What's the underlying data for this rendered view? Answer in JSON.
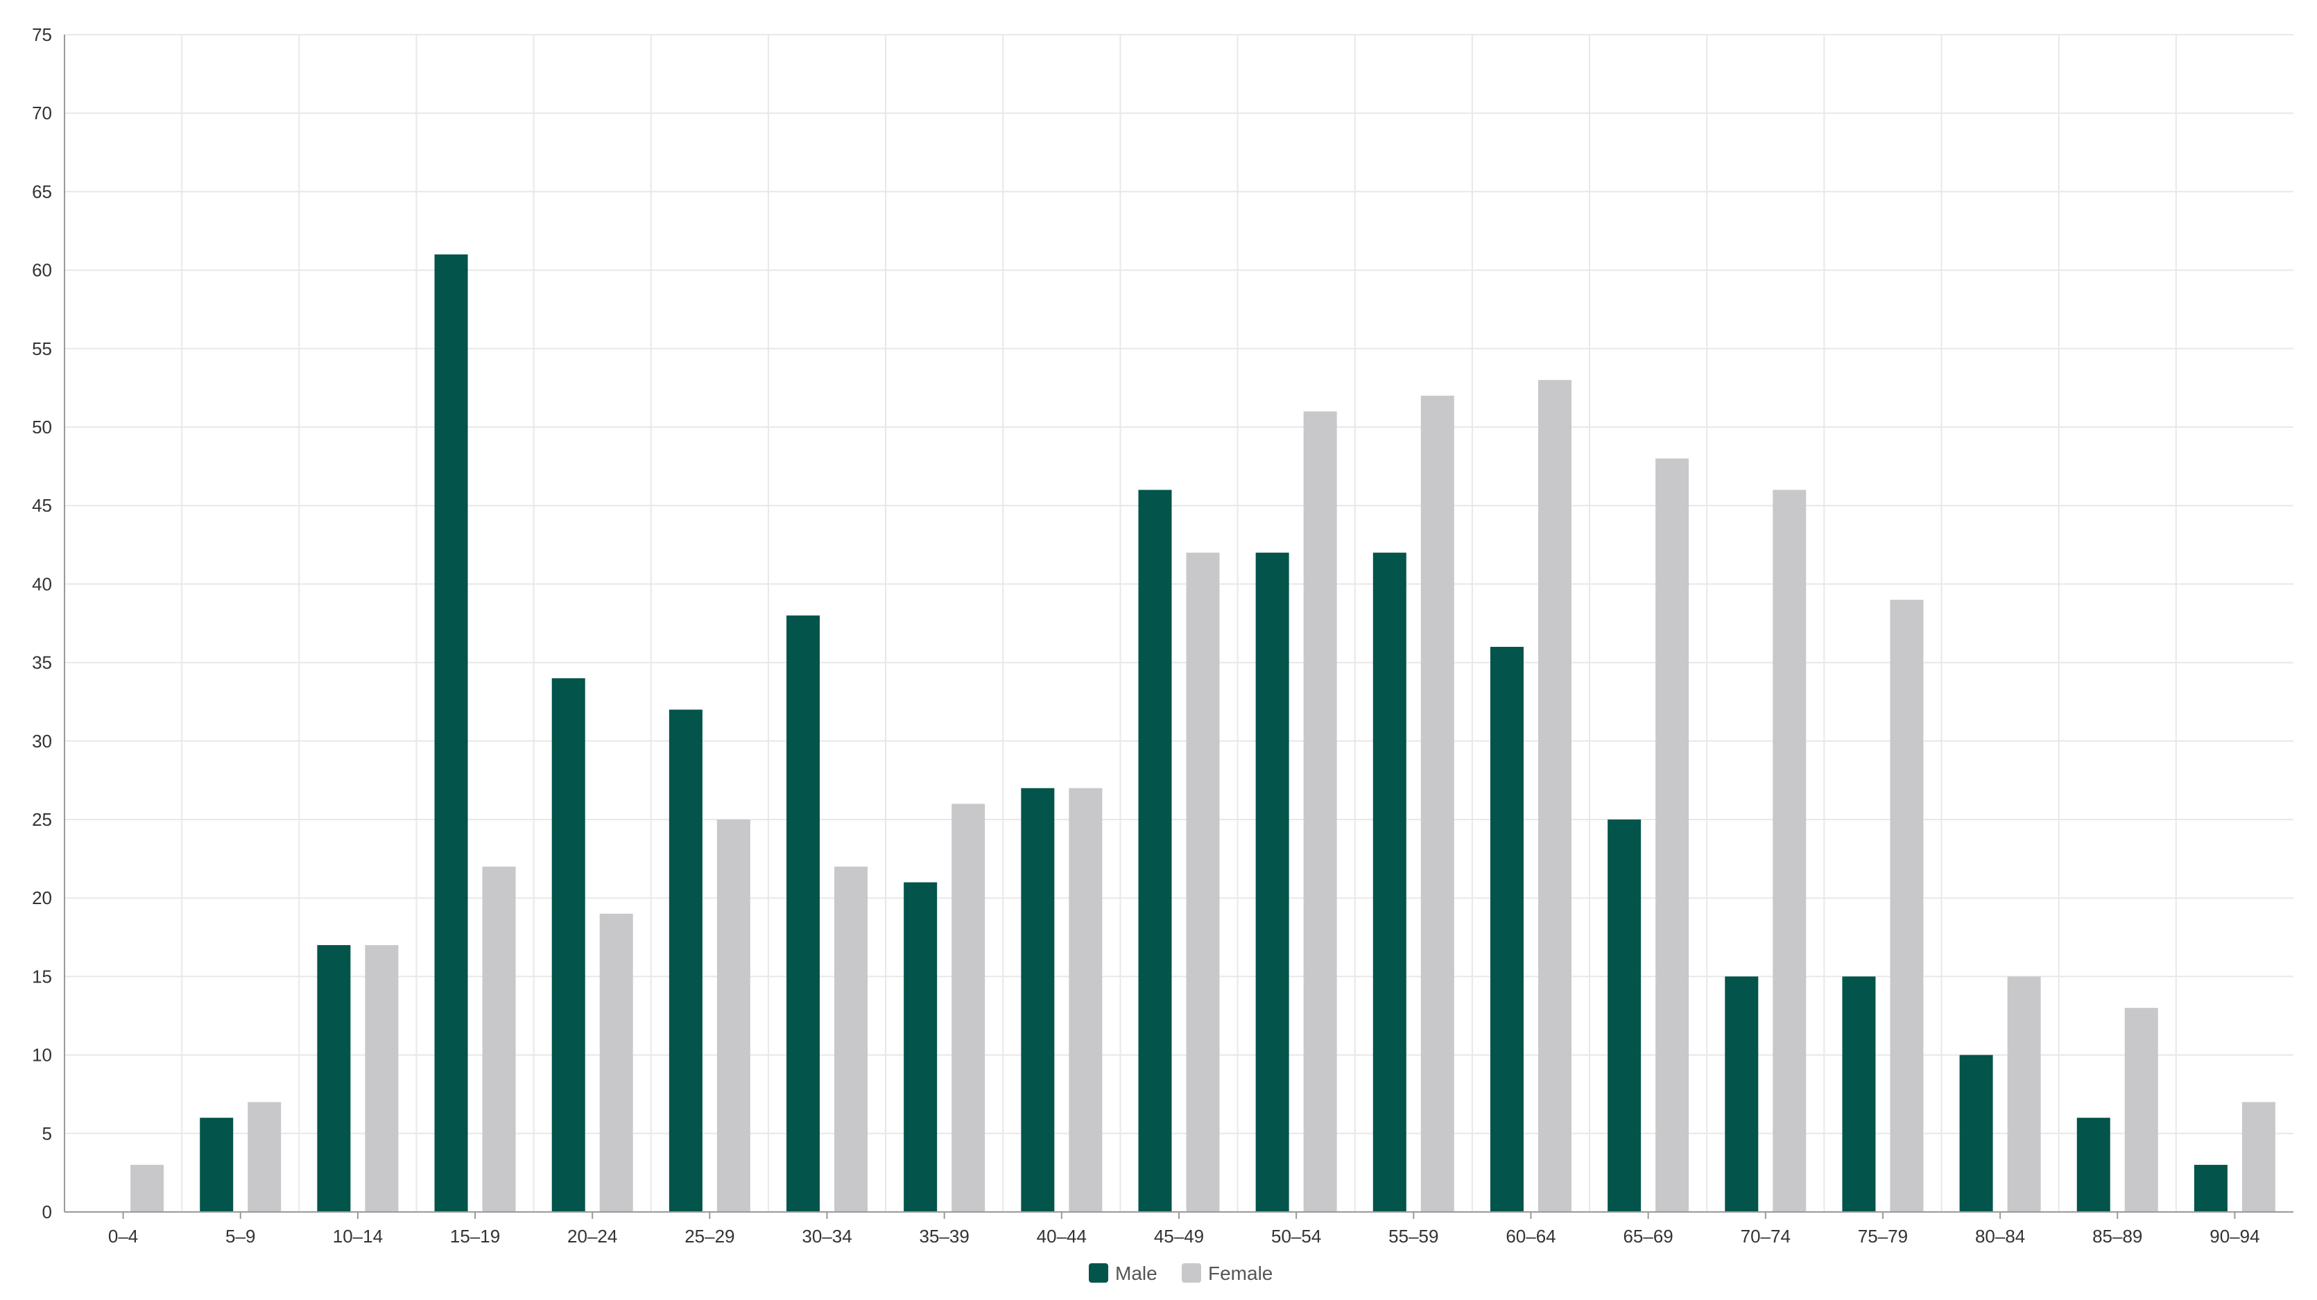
{
  "chart_data": {
    "type": "bar",
    "categories": [
      "0–4",
      "5–9",
      "10–14",
      "15–19",
      "20–24",
      "25–29",
      "30–34",
      "35–39",
      "40–44",
      "45–49",
      "50–54",
      "55–59",
      "60–64",
      "65–69",
      "70–74",
      "75–79",
      "80–84",
      "85–89",
      "90–94"
    ],
    "series": [
      {
        "name": "Male",
        "color": "#03544a",
        "values": [
          0,
          6,
          17,
          61,
          34,
          32,
          38,
          21,
          27,
          46,
          42,
          42,
          36,
          25,
          15,
          15,
          10,
          6,
          3
        ]
      },
      {
        "name": "Female",
        "color": "#c8c8ca",
        "values": [
          3,
          7,
          17,
          22,
          19,
          25,
          22,
          26,
          27,
          42,
          51,
          52,
          53,
          48,
          46,
          39,
          15,
          13,
          7
        ]
      }
    ],
    "yticks": [
      0,
      5,
      10,
      15,
      20,
      25,
      30,
      35,
      40,
      45,
      50,
      55,
      60,
      65,
      70,
      75
    ],
    "ylim": [
      0,
      75
    ],
    "grid": true,
    "legend_position": "bottom-center"
  }
}
